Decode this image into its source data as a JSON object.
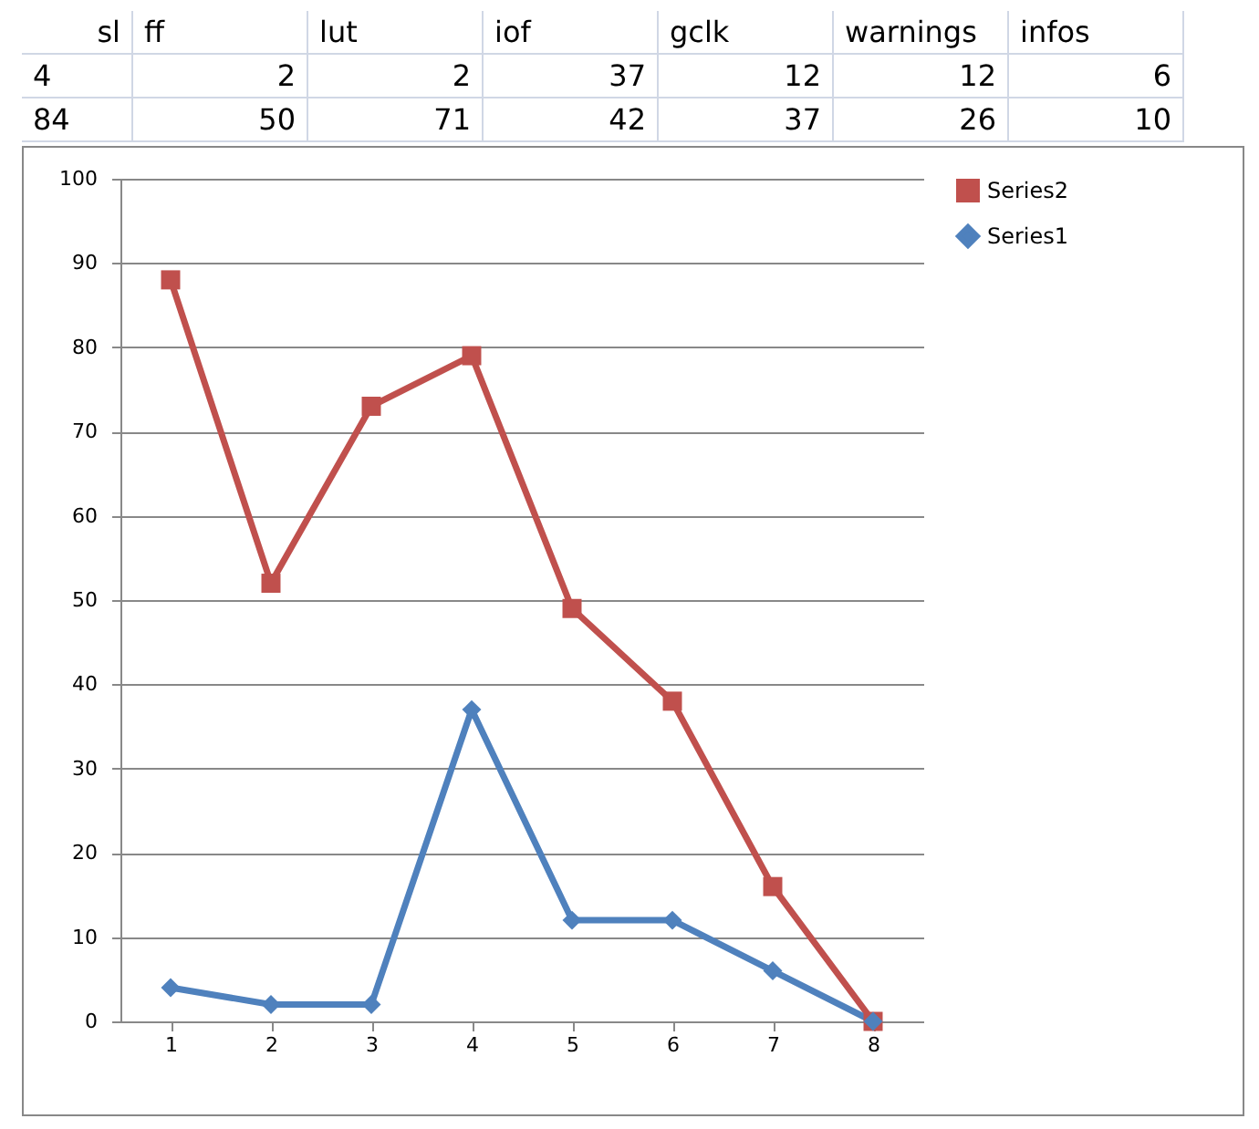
{
  "chart_data": {
    "type": "line",
    "categories": [
      "1",
      "2",
      "3",
      "4",
      "5",
      "6",
      "7",
      "8"
    ],
    "series": [
      {
        "name": "Series2",
        "color": "#c0504d",
        "marker": "square",
        "values": [
          88,
          52,
          73,
          79,
          49,
          38,
          16,
          0
        ]
      },
      {
        "name": "Series1",
        "color": "#4f81bd",
        "marker": "diamond",
        "values": [
          4,
          2,
          2,
          37,
          12,
          12,
          6,
          0
        ]
      }
    ],
    "ylim": [
      0,
      100
    ],
    "yticks": [
      0,
      10,
      20,
      30,
      40,
      50,
      60,
      70,
      80,
      90,
      100
    ],
    "grid": "y",
    "legend": "right",
    "line_style": "solid",
    "annotations": [
      "sl",
      "ff",
      "lut",
      "iof",
      "gclk",
      "warnings",
      "infos",
      "4",
      "2",
      "2",
      "37",
      "12",
      "12",
      "6",
      "84",
      "50",
      "71",
      "42",
      "37",
      "26",
      "10"
    ]
  }
}
